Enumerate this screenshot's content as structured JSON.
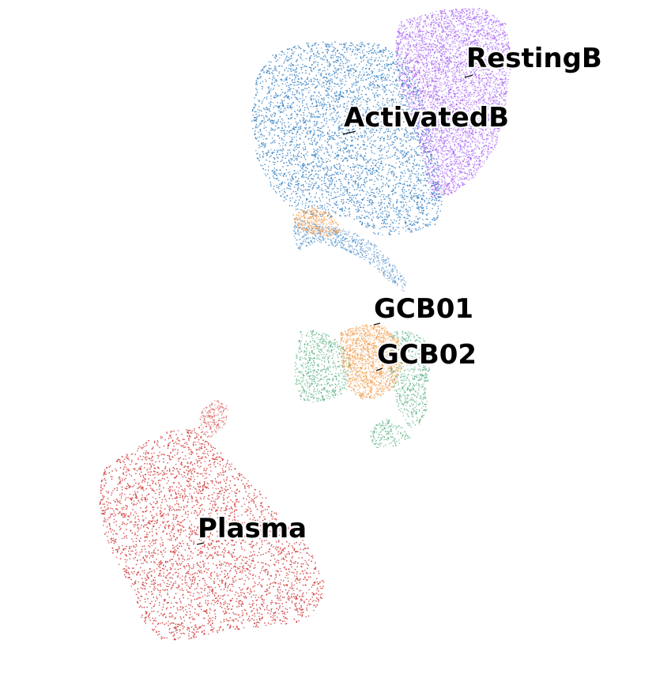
{
  "chart_data": {
    "type": "scatter",
    "title": "",
    "xlabel": "",
    "ylabel": "",
    "axes_visible": false,
    "grid": false,
    "legend": "none",
    "clusters": [
      {
        "label": "RestingB",
        "color": "#9b4ff0",
        "point_count": 5200
      },
      {
        "label": "ActivatedB",
        "color": "#2f7bbf",
        "point_count": 8200
      },
      {
        "label": "GCB01",
        "color": "#2e9b5e",
        "point_count": 1500
      },
      {
        "label": "GCB02",
        "color": "#f08a2c",
        "point_count": 1800
      },
      {
        "label": "Plasma",
        "color": "#d43f3f",
        "point_count": 9000
      }
    ]
  }
}
